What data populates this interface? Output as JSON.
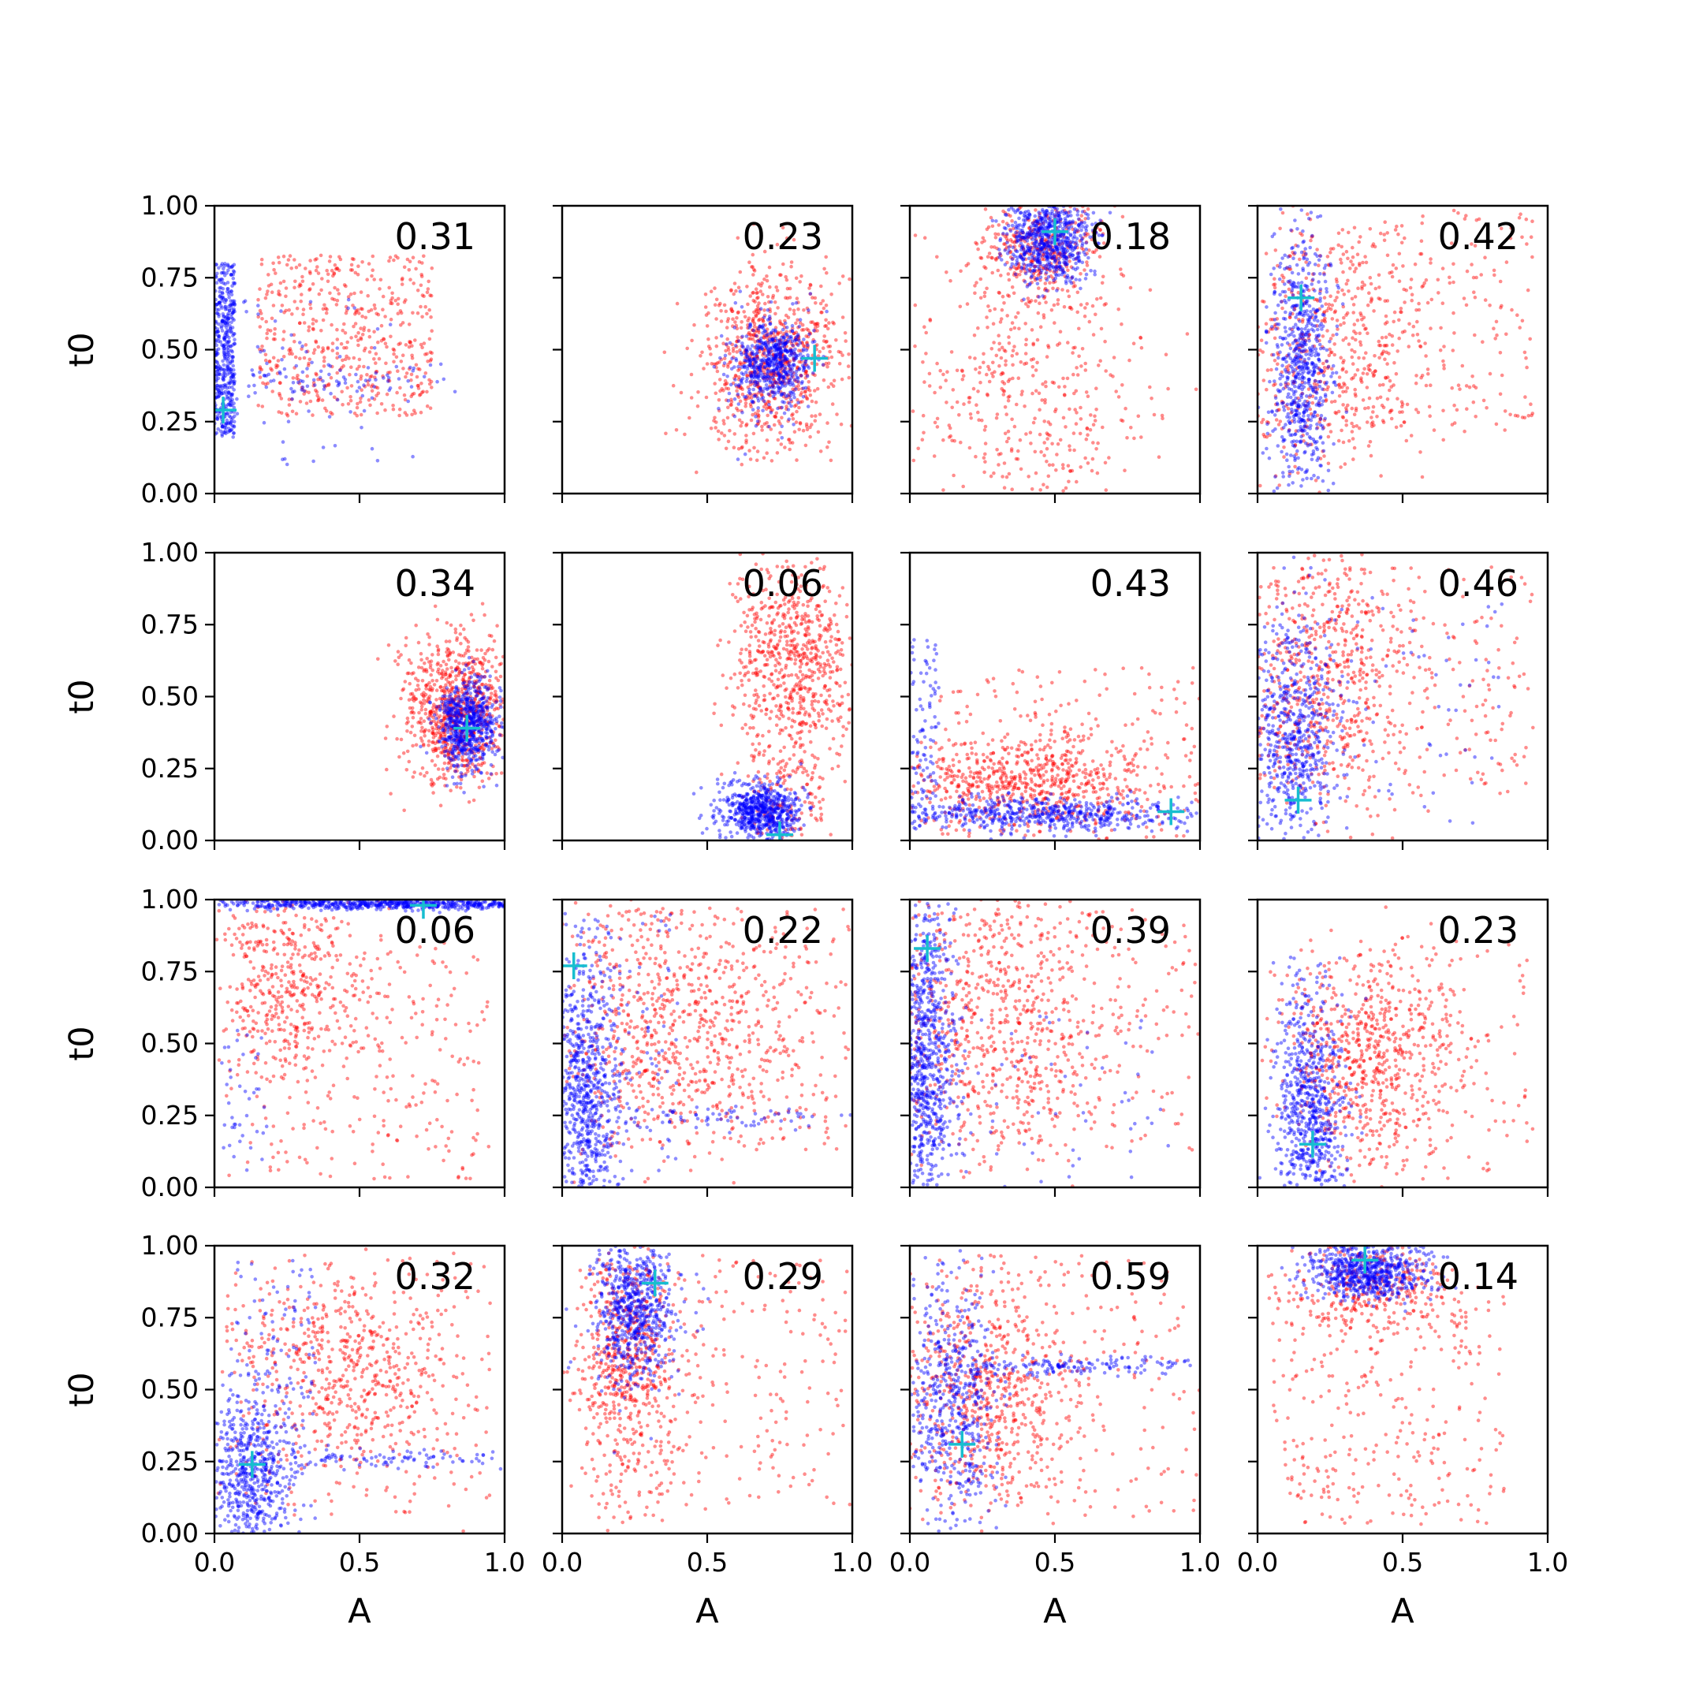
{
  "figure": {
    "xlabel": "A",
    "ylabel": "t0",
    "colors": {
      "series_red": "#ff0000",
      "series_blue": "#0000ff",
      "marker": "#17becf",
      "axes": "#000000"
    }
  },
  "chart_data": {
    "type": "scatter",
    "layout": "grid 4x4",
    "xlim": [
      0,
      1
    ],
    "ylim": [
      0,
      1
    ],
    "xticks": [
      "0.0",
      "0.5",
      "1.0"
    ],
    "yticks": [
      "0.00",
      "0.25",
      "0.50",
      "0.75",
      "1.00"
    ],
    "xlabel": "A",
    "ylabel": "t0",
    "grid": false,
    "legend": "none",
    "series": [
      {
        "color": "#ff0000"
      },
      {
        "color": "#0000ff"
      }
    ],
    "panels": [
      {
        "label": "0.31",
        "marker": [
          0.03,
          0.29
        ],
        "red": [
          {
            "cx": 0.45,
            "cy": 0.55,
            "sx": 0.3,
            "sy": 0.28,
            "n": 520,
            "type": "uniform"
          }
        ],
        "blue": [
          {
            "cx": 0.03,
            "cy": 0.5,
            "sx": 0.04,
            "sy": 0.3,
            "n": 450,
            "type": "uniform"
          },
          {
            "cx": 0.35,
            "cy": 0.4,
            "sx": 0.25,
            "sy": 0.04,
            "n": 80,
            "type": "gauss"
          },
          {
            "cx": 0.4,
            "cy": 0.4,
            "sx": 0.35,
            "sy": 0.3,
            "n": 60,
            "type": "uniform"
          }
        ]
      },
      {
        "label": "0.23",
        "marker": [
          0.87,
          0.47
        ],
        "red": [
          {
            "cx": 0.72,
            "cy": 0.47,
            "sx": 0.12,
            "sy": 0.16,
            "n": 800,
            "type": "gauss"
          }
        ],
        "blue": [
          {
            "cx": 0.72,
            "cy": 0.45,
            "sx": 0.07,
            "sy": 0.08,
            "n": 600,
            "type": "gauss"
          }
        ]
      },
      {
        "label": "0.18",
        "marker": [
          0.5,
          0.91
        ],
        "red": [
          {
            "cx": 0.45,
            "cy": 0.85,
            "sx": 0.1,
            "sy": 0.09,
            "n": 350,
            "type": "gauss"
          },
          {
            "cx": 0.42,
            "cy": 0.35,
            "sx": 0.22,
            "sy": 0.25,
            "n": 420,
            "type": "gauss"
          }
        ],
        "blue": [
          {
            "cx": 0.48,
            "cy": 0.88,
            "sx": 0.07,
            "sy": 0.07,
            "n": 650,
            "type": "gauss"
          }
        ]
      },
      {
        "label": "0.42",
        "marker": [
          0.15,
          0.68
        ],
        "red": [
          {
            "cx": 0.25,
            "cy": 0.5,
            "sx": 0.18,
            "sy": 0.25,
            "n": 450,
            "type": "gauss"
          },
          {
            "cx": 0.5,
            "cy": 0.6,
            "sx": 0.45,
            "sy": 0.38,
            "n": 260,
            "type": "uniform"
          }
        ],
        "blue": [
          {
            "cx": 0.15,
            "cy": 0.45,
            "sx": 0.05,
            "sy": 0.22,
            "n": 650,
            "type": "gauss"
          }
        ]
      },
      {
        "label": "0.34",
        "marker": [
          0.87,
          0.39
        ],
        "red": [
          {
            "cx": 0.83,
            "cy": 0.45,
            "sx": 0.09,
            "sy": 0.13,
            "n": 800,
            "type": "gauss"
          }
        ],
        "blue": [
          {
            "cx": 0.87,
            "cy": 0.4,
            "sx": 0.05,
            "sy": 0.08,
            "n": 650,
            "type": "gauss"
          }
        ]
      },
      {
        "label": "0.06",
        "marker": [
          0.75,
          0.02
        ],
        "red": [
          {
            "cx": 0.8,
            "cy": 0.62,
            "sx": 0.1,
            "sy": 0.17,
            "n": 650,
            "type": "gauss"
          },
          {
            "cx": 0.78,
            "cy": 0.15,
            "sx": 0.08,
            "sy": 0.1,
            "n": 150,
            "type": "gauss"
          }
        ],
        "blue": [
          {
            "cx": 0.68,
            "cy": 0.1,
            "sx": 0.07,
            "sy": 0.05,
            "n": 650,
            "type": "gauss"
          }
        ]
      },
      {
        "label": "0.43",
        "marker": [
          0.9,
          0.1
        ],
        "red": [
          {
            "cx": 0.4,
            "cy": 0.2,
            "sx": 0.22,
            "sy": 0.08,
            "n": 600,
            "type": "gauss"
          },
          {
            "cx": 0.55,
            "cy": 0.3,
            "sx": 0.45,
            "sy": 0.3,
            "n": 200,
            "type": "uniform"
          }
        ],
        "blue": [
          {
            "cx": 0.45,
            "cy": 0.09,
            "sx": 0.28,
            "sy": 0.03,
            "n": 550,
            "type": "gauss"
          },
          {
            "cx": 0.05,
            "cy": 0.4,
            "sx": 0.05,
            "sy": 0.3,
            "n": 90,
            "type": "uniform"
          }
        ]
      },
      {
        "label": "0.46",
        "marker": [
          0.14,
          0.14
        ],
        "red": [
          {
            "cx": 0.22,
            "cy": 0.55,
            "sx": 0.15,
            "sy": 0.25,
            "n": 500,
            "type": "gauss"
          },
          {
            "cx": 0.5,
            "cy": 0.55,
            "sx": 0.45,
            "sy": 0.4,
            "n": 260,
            "type": "uniform"
          }
        ],
        "blue": [
          {
            "cx": 0.12,
            "cy": 0.38,
            "sx": 0.08,
            "sy": 0.2,
            "n": 550,
            "type": "gauss"
          },
          {
            "cx": 0.45,
            "cy": 0.45,
            "sx": 0.4,
            "sy": 0.4,
            "n": 80,
            "type": "uniform"
          }
        ]
      },
      {
        "label": "0.06",
        "marker": [
          0.72,
          0.98
        ],
        "red": [
          {
            "cx": 0.25,
            "cy": 0.72,
            "sx": 0.14,
            "sy": 0.18,
            "n": 380,
            "type": "gauss"
          },
          {
            "cx": 0.5,
            "cy": 0.45,
            "sx": 0.45,
            "sy": 0.42,
            "n": 280,
            "type": "uniform"
          }
        ],
        "blue": [
          {
            "cx": 0.6,
            "cy": 0.985,
            "sx": 0.3,
            "sy": 0.01,
            "n": 550,
            "type": "gauss"
          },
          {
            "cx": 0.1,
            "cy": 0.3,
            "sx": 0.08,
            "sy": 0.25,
            "n": 40,
            "type": "uniform"
          }
        ]
      },
      {
        "label": "0.22",
        "marker": [
          0.04,
          0.77
        ],
        "red": [
          {
            "cx": 0.4,
            "cy": 0.55,
            "sx": 0.22,
            "sy": 0.22,
            "n": 600,
            "type": "gauss"
          },
          {
            "cx": 0.55,
            "cy": 0.55,
            "sx": 0.45,
            "sy": 0.42,
            "n": 260,
            "type": "uniform"
          }
        ],
        "blue": [
          {
            "cx": 0.07,
            "cy": 0.3,
            "sx": 0.06,
            "sy": 0.25,
            "n": 600,
            "type": "gauss"
          },
          {
            "cx": 0.55,
            "cy": 0.24,
            "sx": 0.22,
            "sy": 0.02,
            "n": 70,
            "type": "gauss"
          },
          {
            "cx": 0.2,
            "cy": 0.5,
            "sx": 0.2,
            "sy": 0.45,
            "n": 120,
            "type": "uniform"
          }
        ]
      },
      {
        "label": "0.39",
        "marker": [
          0.06,
          0.83
        ],
        "red": [
          {
            "cx": 0.3,
            "cy": 0.55,
            "sx": 0.2,
            "sy": 0.25,
            "n": 600,
            "type": "gauss"
          },
          {
            "cx": 0.55,
            "cy": 0.55,
            "sx": 0.45,
            "sy": 0.42,
            "n": 200,
            "type": "uniform"
          }
        ],
        "blue": [
          {
            "cx": 0.05,
            "cy": 0.45,
            "sx": 0.05,
            "sy": 0.28,
            "n": 650,
            "type": "gauss"
          },
          {
            "cx": 0.45,
            "cy": 0.3,
            "sx": 0.45,
            "sy": 0.3,
            "n": 70,
            "type": "uniform"
          }
        ]
      },
      {
        "label": "0.23",
        "marker": [
          0.19,
          0.15
        ],
        "red": [
          {
            "cx": 0.38,
            "cy": 0.45,
            "sx": 0.16,
            "sy": 0.18,
            "n": 650,
            "type": "gauss"
          },
          {
            "cx": 0.55,
            "cy": 0.45,
            "sx": 0.4,
            "sy": 0.4,
            "n": 150,
            "type": "uniform"
          }
        ],
        "blue": [
          {
            "cx": 0.18,
            "cy": 0.28,
            "sx": 0.06,
            "sy": 0.2,
            "n": 650,
            "type": "gauss"
          }
        ]
      },
      {
        "label": "0.32",
        "marker": [
          0.13,
          0.24
        ],
        "red": [
          {
            "cx": 0.42,
            "cy": 0.55,
            "sx": 0.2,
            "sy": 0.18,
            "n": 500,
            "type": "gauss"
          },
          {
            "cx": 0.5,
            "cy": 0.5,
            "sx": 0.45,
            "sy": 0.45,
            "n": 200,
            "type": "uniform"
          }
        ],
        "blue": [
          {
            "cx": 0.12,
            "cy": 0.2,
            "sx": 0.08,
            "sy": 0.15,
            "n": 550,
            "type": "gauss"
          },
          {
            "cx": 0.6,
            "cy": 0.26,
            "sx": 0.25,
            "sy": 0.015,
            "n": 100,
            "type": "gauss"
          },
          {
            "cx": 0.2,
            "cy": 0.7,
            "sx": 0.15,
            "sy": 0.25,
            "n": 80,
            "type": "uniform"
          }
        ]
      },
      {
        "label": "0.29",
        "marker": [
          0.32,
          0.87
        ],
        "red": [
          {
            "cx": 0.22,
            "cy": 0.6,
            "sx": 0.09,
            "sy": 0.22,
            "n": 550,
            "type": "gauss"
          },
          {
            "cx": 0.55,
            "cy": 0.5,
            "sx": 0.45,
            "sy": 0.45,
            "n": 250,
            "type": "uniform"
          }
        ],
        "blue": [
          {
            "cx": 0.25,
            "cy": 0.78,
            "sx": 0.07,
            "sy": 0.13,
            "n": 650,
            "type": "gauss"
          }
        ]
      },
      {
        "label": "0.59",
        "marker": [
          0.18,
          0.31
        ],
        "red": [
          {
            "cx": 0.25,
            "cy": 0.5,
            "sx": 0.15,
            "sy": 0.2,
            "n": 600,
            "type": "gauss"
          },
          {
            "cx": 0.55,
            "cy": 0.5,
            "sx": 0.45,
            "sy": 0.45,
            "n": 200,
            "type": "uniform"
          }
        ],
        "blue": [
          {
            "cx": 0.15,
            "cy": 0.45,
            "sx": 0.08,
            "sy": 0.22,
            "n": 500,
            "type": "gauss"
          },
          {
            "cx": 0.6,
            "cy": 0.58,
            "sx": 0.25,
            "sy": 0.015,
            "n": 150,
            "type": "gauss"
          }
        ]
      },
      {
        "label": "0.14",
        "marker": [
          0.37,
          0.95
        ],
        "red": [
          {
            "cx": 0.4,
            "cy": 0.85,
            "sx": 0.14,
            "sy": 0.08,
            "n": 300,
            "type": "gauss"
          },
          {
            "cx": 0.45,
            "cy": 0.45,
            "sx": 0.4,
            "sy": 0.42,
            "n": 300,
            "type": "uniform"
          }
        ],
        "blue": [
          {
            "cx": 0.38,
            "cy": 0.91,
            "sx": 0.1,
            "sy": 0.05,
            "n": 650,
            "type": "gauss"
          }
        ]
      }
    ]
  }
}
